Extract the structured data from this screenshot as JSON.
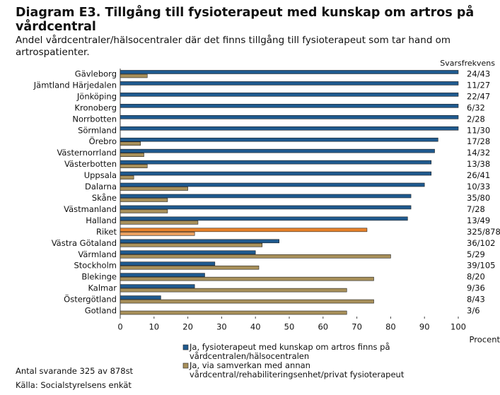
{
  "chart_data": {
    "type": "hbar",
    "title": "Diagram E3. Tillgång till fysioterapeut med kunskap om artros på vårdcentral",
    "subtitle": "Andel vårdcentraler/hälsocentraler där det finns tillgång till fysioterapeut som tar hand om artrospatienter.",
    "response_label": "Svarsfrekvens",
    "x_label": "Procent",
    "categories": [
      "Gävleborg",
      "Jämtland Härjedalen",
      "Jönköping",
      "Kronoberg",
      "Norrbotten",
      "Sörmland",
      "Örebro",
      "Västernorrland",
      "Västerbotten",
      "Uppsala",
      "Dalarna",
      "Skåne",
      "Västmanland",
      "Halland",
      "Riket",
      "Västra Götaland",
      "Värmland",
      "Stockholm",
      "Blekinge",
      "Kalmar",
      "Östergötland",
      "Gotland"
    ],
    "response": [
      "24/43",
      "11/27",
      "22/47",
      "6/32",
      "2/28",
      "11/30",
      "17/28",
      "14/32",
      "13/38",
      "26/41",
      "10/33",
      "35/80",
      "7/28",
      "13/49",
      "325/878",
      "36/102",
      "5/29",
      "39/105",
      "8/20",
      "9/36",
      "8/43",
      "3/6"
    ],
    "series": [
      {
        "name": "Ja, fysioterapeut med kunskap om artros finns på vårdcentralen/hälsocentralen",
        "color": "#1f5a8f",
        "values": [
          100,
          100,
          100,
          100,
          100,
          100,
          94,
          93,
          92,
          92,
          90,
          86,
          86,
          85,
          73,
          47,
          40,
          28,
          25,
          22,
          12,
          0
        ]
      },
      {
        "name": "Ja, via samverkan med annan vårdcentral/rehabiliteringsenhet/privat fysioterapeut",
        "color": "#a8905a",
        "values": [
          8,
          0,
          0,
          0,
          0,
          0,
          6,
          7,
          8,
          4,
          20,
          14,
          14,
          23,
          22,
          42,
          80,
          41,
          75,
          67,
          75,
          67
        ]
      }
    ],
    "highlight": {
      "category": "Riket",
      "colors": [
        "#e8822a",
        "#eba060"
      ]
    },
    "xlim": [
      0,
      100
    ],
    "xticks": [
      0,
      10,
      20,
      30,
      40,
      50,
      60,
      70,
      80,
      90,
      100
    ],
    "notes": [
      "Antal svarande 325 av 878st",
      "Källa: Socialstyrelsens enkät"
    ]
  }
}
